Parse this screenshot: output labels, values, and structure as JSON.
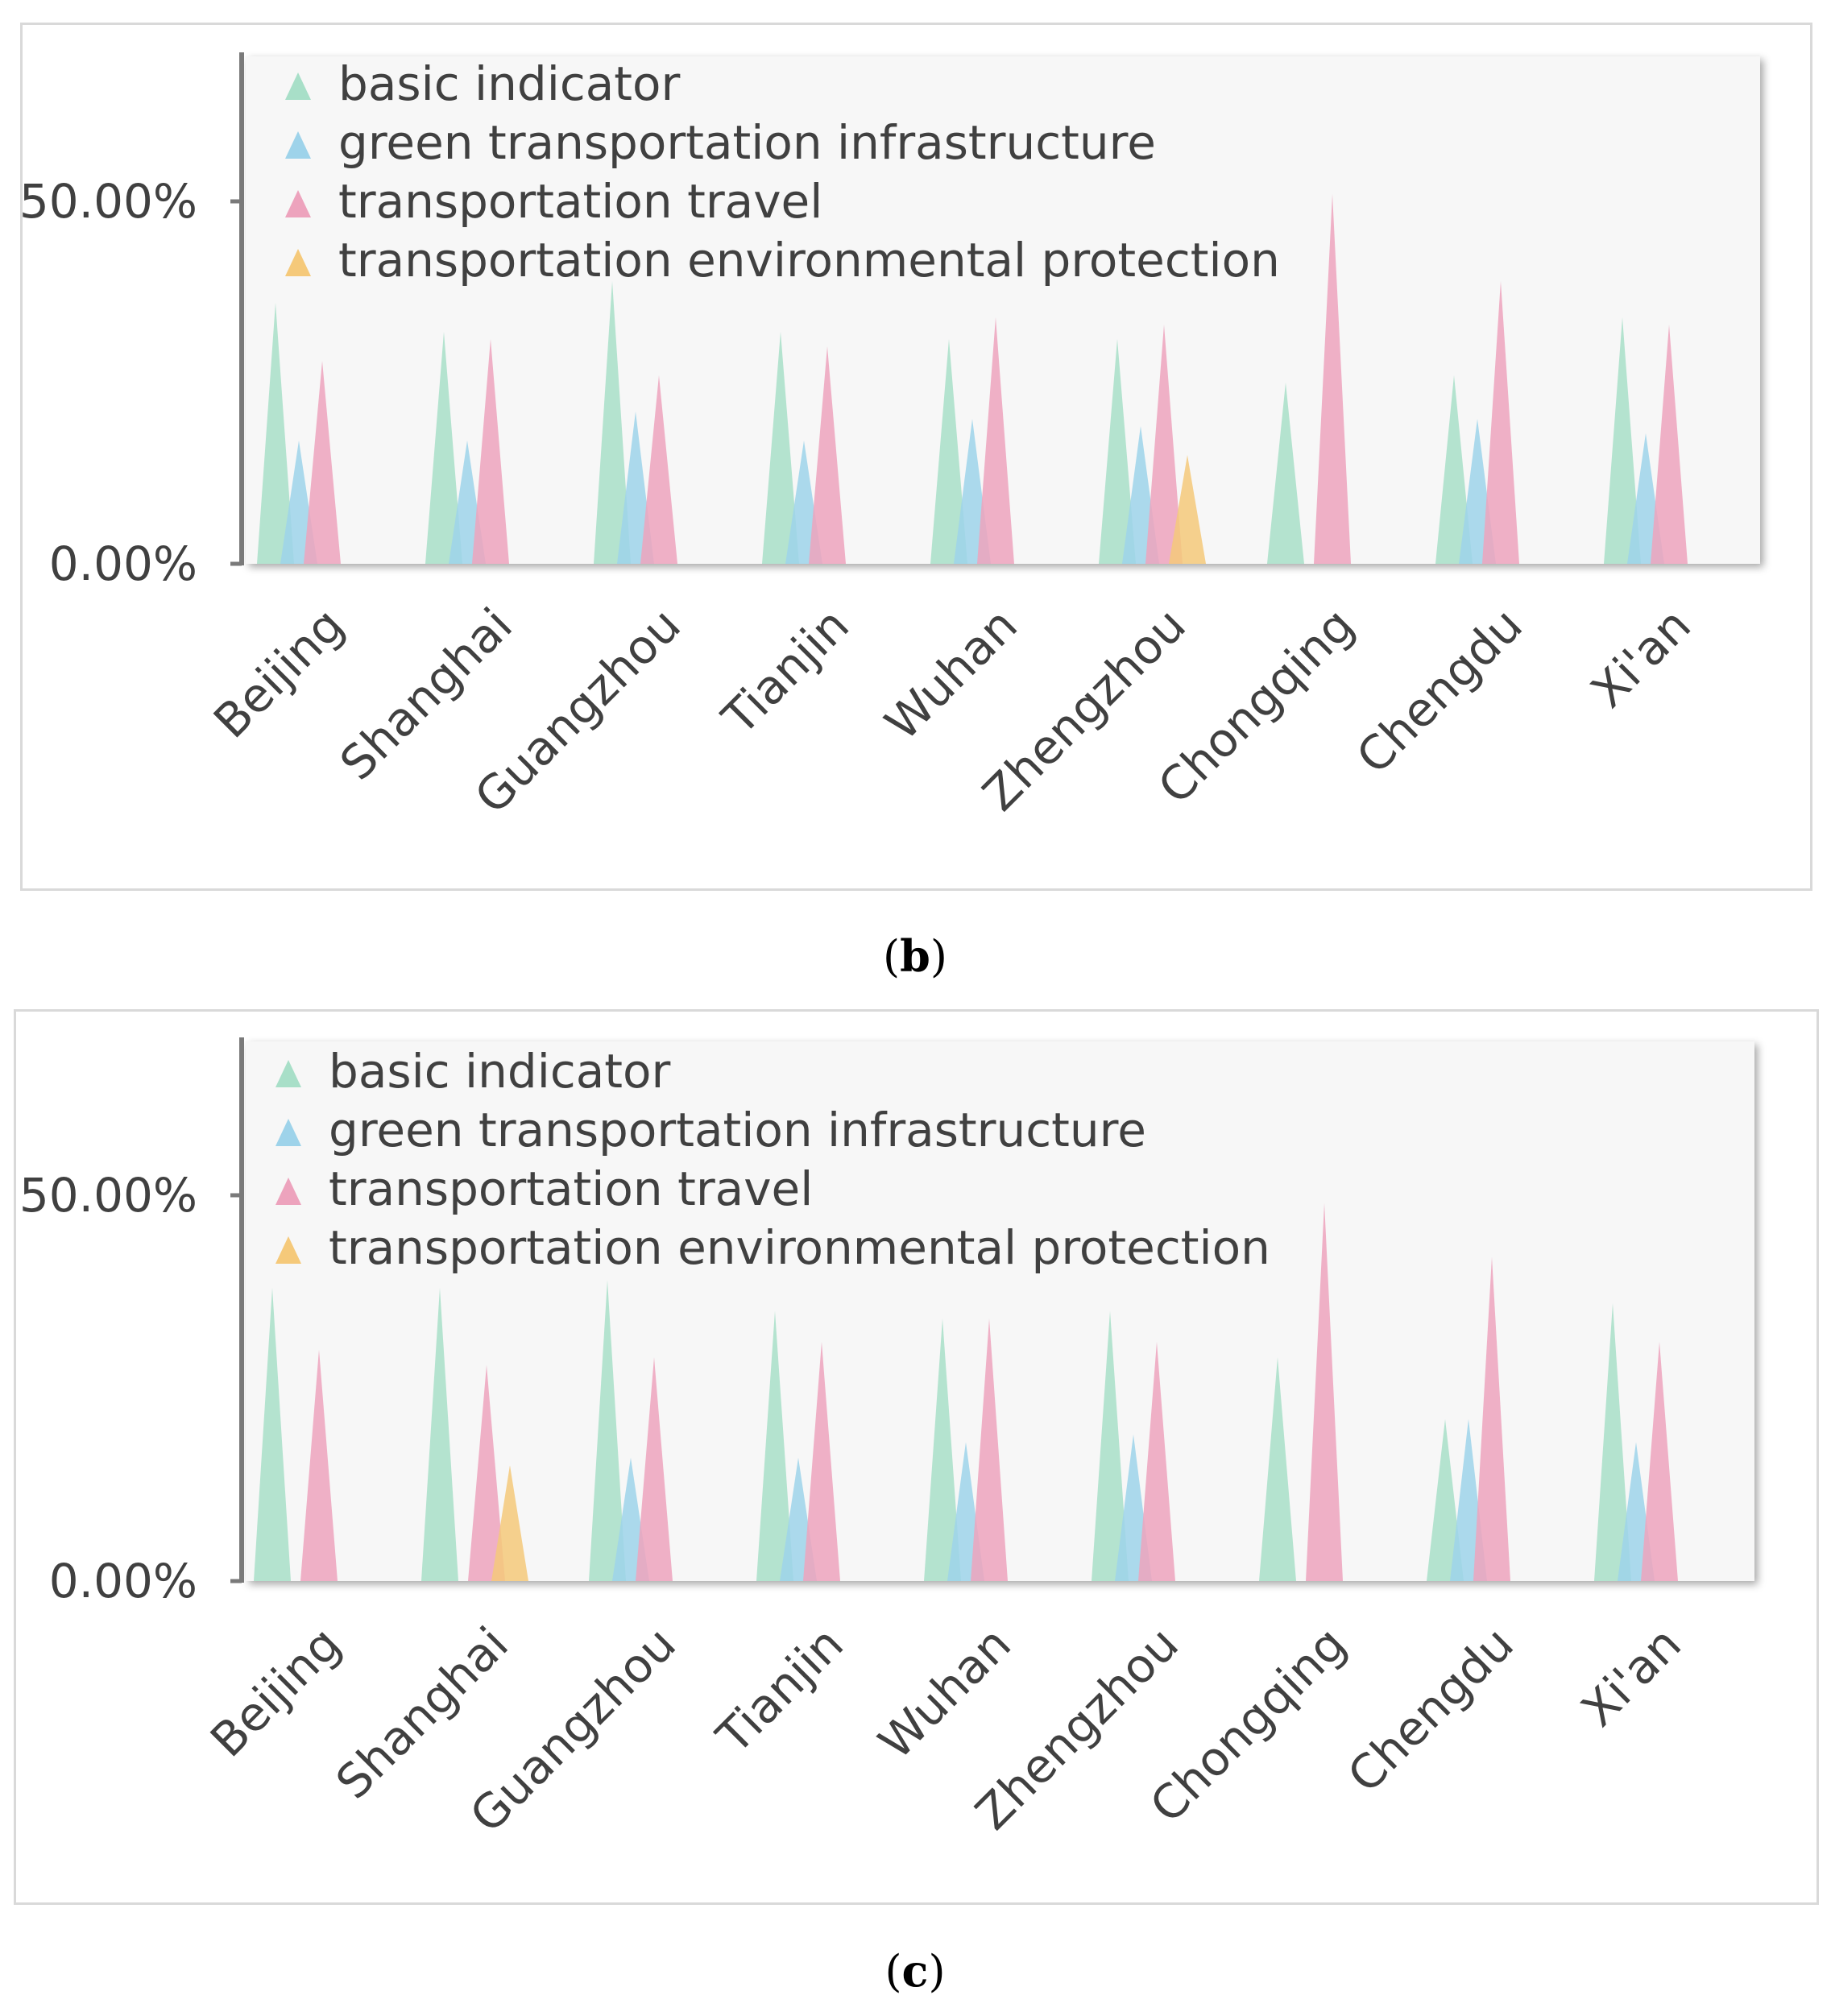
{
  "chart_data": [
    {
      "panel": "b",
      "type": "bar",
      "bar_shape": "triangle",
      "categories": [
        "Beijing",
        "Shanghai",
        "Guangzhou",
        "Tianjin",
        "Wuhan",
        "Zhengzhou",
        "Chongqing",
        "Chengdu",
        "Xi'an"
      ],
      "series": [
        {
          "name": "basic indicator",
          "color": "#a8dfc8",
          "values": [
            36,
            32,
            39,
            32,
            31,
            31,
            25,
            26,
            34
          ]
        },
        {
          "name": "green transportation infrastructure",
          "color": "#9ed3ea",
          "values": [
            17,
            17,
            21,
            17,
            20,
            19,
            0,
            20,
            18
          ]
        },
        {
          "name": "transportation travel",
          "color": "#eda3bd",
          "values": [
            28,
            31,
            26,
            30,
            34,
            33,
            51,
            39,
            33
          ]
        },
        {
          "name": "transportation environmental protection",
          "color": "#f5c97a",
          "values": [
            0,
            0,
            0,
            0,
            0,
            15,
            0,
            0,
            0
          ]
        }
      ],
      "yticks": [
        "0.00%",
        "50.00%"
      ],
      "ylim": [
        0,
        70
      ],
      "legend": "top-left",
      "caption_label": "b"
    },
    {
      "panel": "c",
      "type": "bar",
      "bar_shape": "triangle",
      "categories": [
        "Beijing",
        "Shanghai",
        "Guangzhou",
        "Tianjin",
        "Wuhan",
        "Zhengzhou",
        "Chongqing",
        "Chengdu",
        "Xi'an"
      ],
      "series": [
        {
          "name": "basic indicator",
          "color": "#a8dfc8",
          "values": [
            38,
            38,
            39,
            35,
            34,
            35,
            29,
            21,
            36
          ]
        },
        {
          "name": "green transportation infrastructure",
          "color": "#9ed3ea",
          "values": [
            0,
            0,
            16,
            16,
            18,
            19,
            0,
            21,
            18
          ]
        },
        {
          "name": "transportation travel",
          "color": "#eda3bd",
          "values": [
            30,
            28,
            29,
            31,
            34,
            31,
            49,
            42,
            31
          ]
        },
        {
          "name": "transportation environmental protection",
          "color": "#f5c97a",
          "values": [
            0,
            15,
            0,
            0,
            0,
            0,
            0,
            0,
            0
          ]
        }
      ],
      "yticks": [
        "0.00%",
        "50.00%"
      ],
      "ylim": [
        0,
        70
      ],
      "legend": "top-left",
      "caption_label": "c"
    }
  ]
}
